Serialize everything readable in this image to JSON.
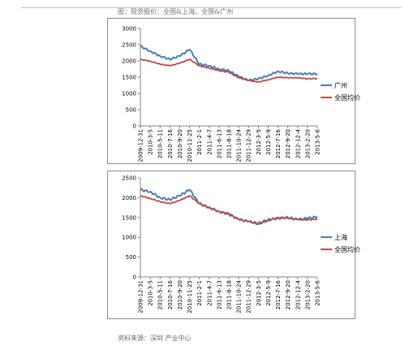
{
  "caption": "图：现货报价：全国&上海、全国&广州",
  "source": "资料来源：深圳 产业中心",
  "colors": {
    "blue": "#4a7ebb",
    "red": "#be4b48",
    "axis": "#868686"
  },
  "chart_data": [
    {
      "type": "line",
      "ylim": [
        0,
        3000
      ],
      "yticks": [
        "0",
        "500",
        "1000",
        "1500",
        "2000",
        "2500",
        "3000"
      ],
      "x": [
        "2009-12-31",
        "2010-3-5",
        "2010-5-11",
        "2010-7-16",
        "2010-9-20",
        "2010-11-25",
        "2011-2-1",
        "2011-4-7",
        "2011-6-13",
        "2011-8-18",
        "2011-10-24",
        "2011-12-29",
        "2012-3-5",
        "2012-5-9",
        "2012-7-16",
        "2012-9-20",
        "2012-12-4",
        "2013-2-20",
        "2013-5-6"
      ],
      "series": [
        {
          "name": "广州",
          "color": "#4a7ebb",
          "values": [
            2450,
            2300,
            2150,
            2050,
            2150,
            2350,
            1900,
            1850,
            1750,
            1700,
            1520,
            1400,
            1450,
            1550,
            1680,
            1620,
            1600,
            1600,
            1600
          ]
        },
        {
          "name": "全国均价",
          "color": "#be4b48",
          "values": [
            2050,
            1990,
            1900,
            1850,
            1930,
            2050,
            1850,
            1780,
            1700,
            1650,
            1480,
            1400,
            1350,
            1420,
            1500,
            1480,
            1480,
            1450,
            1460
          ]
        }
      ]
    },
    {
      "type": "line",
      "ylim": [
        0,
        2500
      ],
      "yticks": [
        "0",
        "500",
        "1000",
        "1500",
        "2000",
        "2500"
      ],
      "x": [
        "2009-12-31",
        "2010-3-5",
        "2010-5-11",
        "2010-7-16",
        "2010-9-20",
        "2010-11-25",
        "2011-2-1",
        "2011-4-7",
        "2011-6-13",
        "2011-8-18",
        "2011-10-24",
        "2011-12-29",
        "2012-3-5",
        "2012-5-9",
        "2012-7-16",
        "2012-9-20",
        "2012-12-4",
        "2013-2-20",
        "2013-5-6"
      ],
      "series": [
        {
          "name": "上海",
          "color": "#4a7ebb",
          "values": [
            2200,
            2150,
            2000,
            1950,
            2050,
            2200,
            1850,
            1750,
            1650,
            1580,
            1450,
            1400,
            1350,
            1450,
            1480,
            1500,
            1450,
            1480,
            1520
          ]
        },
        {
          "name": "全国均价",
          "color": "#be4b48",
          "values": [
            2050,
            1980,
            1900,
            1850,
            1930,
            2050,
            1850,
            1750,
            1650,
            1600,
            1450,
            1400,
            1330,
            1420,
            1500,
            1480,
            1450,
            1440,
            1460
          ]
        }
      ]
    }
  ]
}
